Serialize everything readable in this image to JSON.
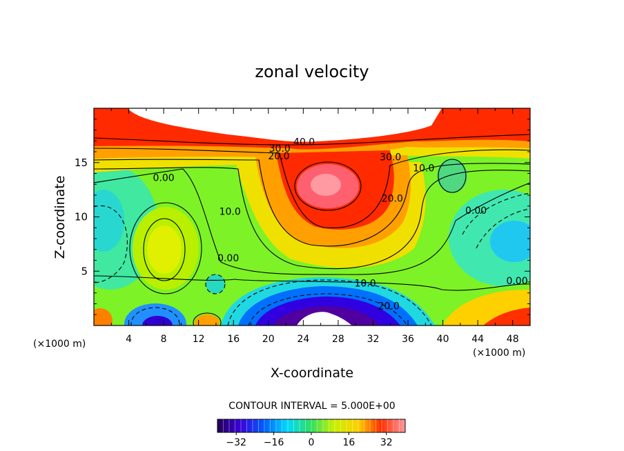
{
  "chart_data": {
    "type": "contour",
    "title": "zonal velocity",
    "xlabel": "X-coordinate",
    "ylabel": "Z-coordinate",
    "x_unit_left": "(×1000 m)",
    "x_unit_right": "(×1000 m)",
    "xlim": [
      0,
      50
    ],
    "ylim": [
      0,
      20
    ],
    "x_ticks": [
      4,
      8,
      12,
      16,
      20,
      24,
      28,
      32,
      36,
      40,
      44,
      48
    ],
    "y_ticks": [
      5,
      10,
      15
    ],
    "contour_interval_text": "CONTOUR INTERVAL = 5.000E+00",
    "contour_interval": 5.0,
    "colorbar": {
      "range": [
        -40,
        40
      ],
      "ticks": [
        -32,
        -16,
        0,
        16,
        32
      ],
      "tick_labels": [
        "−32",
        "−16",
        "0",
        "16",
        "32"
      ]
    },
    "contour_labels": [
      {
        "text": "40.0",
        "x": 24.1,
        "y": 16.6
      },
      {
        "text": "30.0",
        "x": 21.3,
        "y": 16.0
      },
      {
        "text": "20.0",
        "x": 21.2,
        "y": 15.3
      },
      {
        "text": "30.0",
        "x": 34.0,
        "y": 15.2
      },
      {
        "text": "20.0",
        "x": 34.2,
        "y": 11.4
      },
      {
        "text": "10.0",
        "x": 37.8,
        "y": 14.2
      },
      {
        "text": "0.00",
        "x": 8.0,
        "y": 13.3
      },
      {
        "text": "10.0",
        "x": 15.6,
        "y": 10.2
      },
      {
        "text": "0.00",
        "x": 15.4,
        "y": 5.9
      },
      {
        "text": "0.00",
        "x": 43.8,
        "y": 10.3
      },
      {
        "text": "10.0",
        "x": 31.1,
        "y": 3.6
      },
      {
        "text": "20.0",
        "x": 33.8,
        "y": 1.5
      },
      {
        "text": "0.00",
        "x": 48.5,
        "y": 3.8
      }
    ]
  },
  "colors": {
    "plot_background": "#7df226",
    "contour_line": "#000000"
  }
}
